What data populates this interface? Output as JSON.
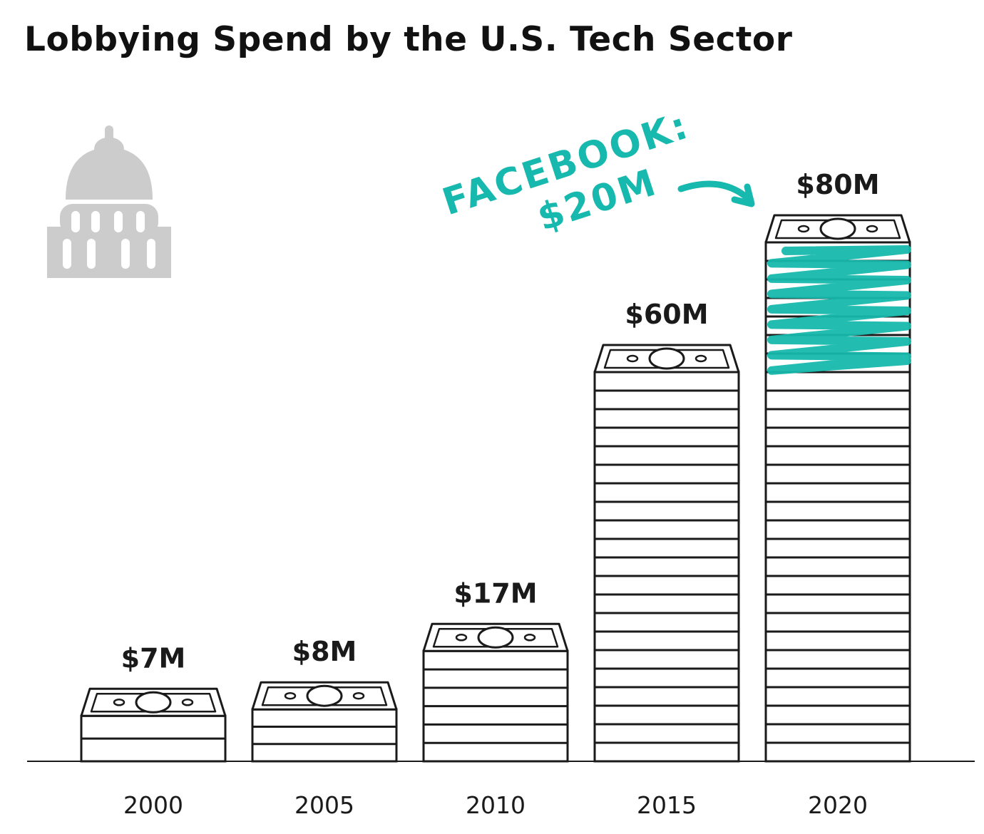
{
  "title": "Lobbying Spend by the U.S. Tech Sector",
  "colors": {
    "ink": "#1a1a1a",
    "accent": "#17b8ad",
    "capitol": "#cccccc"
  },
  "icons": {
    "building": "capitol-dome-icon",
    "bill": "dollar-bill-icon"
  },
  "chart_data": {
    "type": "bar",
    "title": "Lobbying Spend by the U.S. Tech Sector",
    "xlabel": "",
    "ylabel": "",
    "categories": [
      "2000",
      "2005",
      "2010",
      "2015",
      "2020"
    ],
    "values": [
      7,
      8,
      17,
      60,
      80
    ],
    "value_labels": [
      "$7M",
      "$8M",
      "$17M",
      "$60M",
      "$80M"
    ],
    "ylim": [
      0,
      80
    ],
    "grid": false,
    "legend": "none",
    "annotation": {
      "category": "2020",
      "lines": [
        "FACEBOOK:",
        "$20M"
      ],
      "value": 20
    }
  }
}
